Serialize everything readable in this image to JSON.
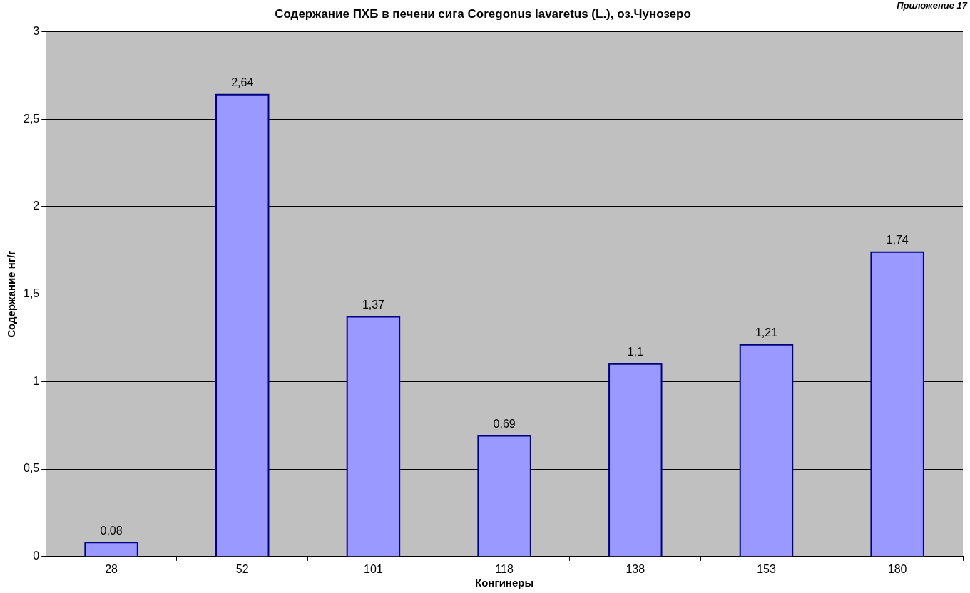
{
  "chart_data": {
    "type": "bar",
    "title": "Содержание ПХБ в печени сига Coregonus lavaretus (L.), оз.Чунозеро",
    "xlabel": "Конгинеры",
    "ylabel": "Содержание нг/г",
    "annotations": [
      "Приложение 17"
    ],
    "categories": [
      "28",
      "52",
      "101",
      "118",
      "138",
      "153",
      "180"
    ],
    "values": [
      0.08,
      2.64,
      1.37,
      0.69,
      1.1,
      1.21,
      1.74
    ],
    "value_labels": [
      "0,08",
      "2,64",
      "1,37",
      "0,69",
      "1,1",
      "1,21",
      "1,74"
    ],
    "color": "#9999ff",
    "ylim": [
      0,
      3
    ],
    "yticks": [
      0,
      {
        "value": 0.5,
        "label": "0,5"
      },
      1,
      {
        "value": 1.5,
        "label": "1,5"
      },
      2,
      {
        "value": 2.5,
        "label": "2,5"
      },
      3
    ],
    "grid": "y",
    "legend": false
  }
}
